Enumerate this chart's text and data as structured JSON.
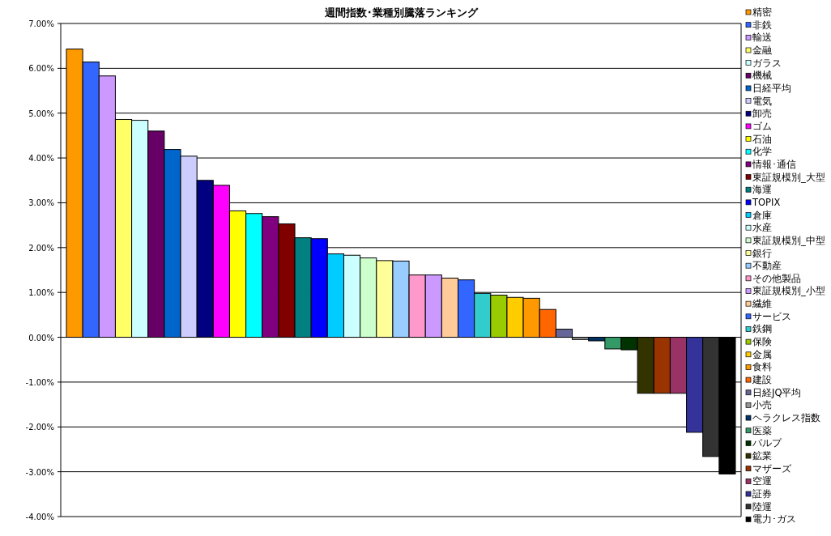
{
  "chart_data": {
    "type": "bar",
    "title": "週間指数･業種別騰落ランキング",
    "categories": [
      null
    ],
    "ylim": [
      -4,
      7
    ],
    "yticks": [
      {
        "value": -4,
        "label": "-4.00%"
      },
      {
        "value": -3,
        "label": "-3.00%"
      },
      {
        "value": -2,
        "label": "-2.00%"
      },
      {
        "value": -1,
        "label": "-1.00%"
      },
      {
        "value": 0,
        "label": "0.00%"
      },
      {
        "value": 1,
        "label": "1.00%"
      },
      {
        "value": 2,
        "label": "2.00%"
      },
      {
        "value": 3,
        "label": "3.00%"
      },
      {
        "value": 4,
        "label": "4.00%"
      },
      {
        "value": 5,
        "label": "5.00%"
      },
      {
        "value": 6,
        "label": "6.00%"
      },
      {
        "value": 7,
        "label": "7.00%"
      }
    ],
    "grid": "y",
    "legend": "right",
    "series": [
      {
        "name": "精密",
        "color": "#ff9900",
        "values": [
          6.43
        ]
      },
      {
        "name": "非鉄",
        "color": "#3366ff",
        "values": [
          6.14
        ]
      },
      {
        "name": "輸送",
        "color": "#cc99ff",
        "values": [
          5.83
        ]
      },
      {
        "name": "金融",
        "color": "#ffff66",
        "values": [
          4.86
        ]
      },
      {
        "name": "ガラス",
        "color": "#ccffff",
        "values": [
          4.84
        ]
      },
      {
        "name": "機械",
        "color": "#660066",
        "values": [
          4.6
        ]
      },
      {
        "name": "日経平均",
        "color": "#0066cc",
        "values": [
          4.19
        ]
      },
      {
        "name": "電気",
        "color": "#ccccff",
        "values": [
          4.04
        ]
      },
      {
        "name": "卸売",
        "color": "#000080",
        "values": [
          3.5
        ]
      },
      {
        "name": "ゴム",
        "color": "#ff00ff",
        "values": [
          3.39
        ]
      },
      {
        "name": "石油",
        "color": "#ffff00",
        "values": [
          2.82
        ]
      },
      {
        "name": "化学",
        "color": "#00ffff",
        "values": [
          2.76
        ]
      },
      {
        "name": "情報･通信",
        "color": "#800080",
        "values": [
          2.69
        ]
      },
      {
        "name": "東証規模別_大型",
        "color": "#800000",
        "values": [
          2.53
        ]
      },
      {
        "name": "海運",
        "color": "#008080",
        "values": [
          2.22
        ]
      },
      {
        "name": "TOPIX",
        "color": "#0000ff",
        "values": [
          2.2
        ]
      },
      {
        "name": "倉庫",
        "color": "#00ccff",
        "values": [
          1.86
        ]
      },
      {
        "name": "水産",
        "color": "#ccffff",
        "values": [
          1.83
        ]
      },
      {
        "name": "東証規模別_中型",
        "color": "#ccffcc",
        "values": [
          1.77
        ]
      },
      {
        "name": "銀行",
        "color": "#ffff99",
        "values": [
          1.71
        ]
      },
      {
        "name": "不動産",
        "color": "#99ccff",
        "values": [
          1.7
        ]
      },
      {
        "name": "その他製品",
        "color": "#ff99cc",
        "values": [
          1.39
        ]
      },
      {
        "name": "東証規模別_小型",
        "color": "#cc99ff",
        "values": [
          1.39
        ]
      },
      {
        "name": "繊維",
        "color": "#ffcc99",
        "values": [
          1.32
        ]
      },
      {
        "name": "サービス",
        "color": "#3366ff",
        "values": [
          1.28
        ]
      },
      {
        "name": "鉄鋼",
        "color": "#33cccc",
        "values": [
          0.98
        ]
      },
      {
        "name": "保険",
        "color": "#99cc00",
        "values": [
          0.94
        ]
      },
      {
        "name": "金属",
        "color": "#ffcc00",
        "values": [
          0.89
        ]
      },
      {
        "name": "食料",
        "color": "#ff9900",
        "values": [
          0.87
        ]
      },
      {
        "name": "建設",
        "color": "#ff6600",
        "values": [
          0.62
        ]
      },
      {
        "name": "日経JQ平均",
        "color": "#666699",
        "values": [
          0.18
        ]
      },
      {
        "name": "小売",
        "color": "#969696",
        "values": [
          -0.05
        ]
      },
      {
        "name": "ヘラクレス指数",
        "color": "#003366",
        "values": [
          -0.08
        ]
      },
      {
        "name": "医薬",
        "color": "#339966",
        "values": [
          -0.26
        ]
      },
      {
        "name": "パルプ",
        "color": "#003300",
        "values": [
          -0.28
        ]
      },
      {
        "name": "鉱業",
        "color": "#333300",
        "values": [
          -1.25
        ]
      },
      {
        "name": "マザーズ",
        "color": "#993300",
        "values": [
          -1.25
        ]
      },
      {
        "name": "空運",
        "color": "#993366",
        "values": [
          -1.25
        ]
      },
      {
        "name": "証券",
        "color": "#333399",
        "values": [
          -2.12
        ]
      },
      {
        "name": "陸運",
        "color": "#333333",
        "values": [
          -2.66
        ]
      },
      {
        "name": "電力･ガス",
        "color": "#000000",
        "values": [
          -3.05
        ]
      }
    ]
  }
}
